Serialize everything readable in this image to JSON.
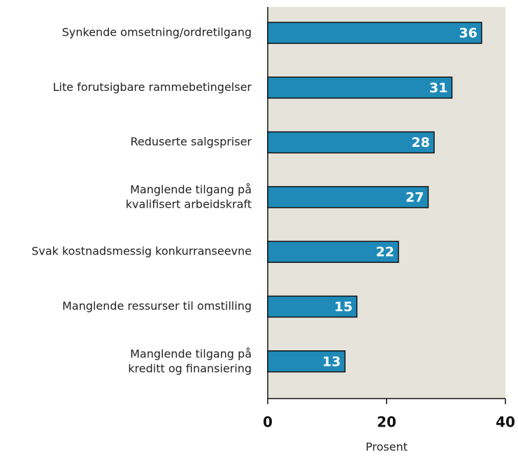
{
  "chart_data": {
    "type": "bar",
    "orientation": "horizontal",
    "categories": [
      "Synkende omsetning/ordretilgang",
      "Lite forutsigbare rammebetingelser",
      "Reduserte salgspriser",
      "Manglende tilgang på\nkvalifisert arbeidskraft",
      "Svak kostnadsmessig konkurranseevne",
      "Manglende ressurser til omstilling",
      "Manglende tilgang på\nkreditt og finansiering"
    ],
    "values": [
      36,
      31,
      28,
      27,
      22,
      15,
      13
    ],
    "color": "#1f8ab8",
    "xlim": [
      0,
      40
    ],
    "xticks": [
      0,
      20,
      40
    ],
    "x_label": "Prosent",
    "grid": false
  }
}
